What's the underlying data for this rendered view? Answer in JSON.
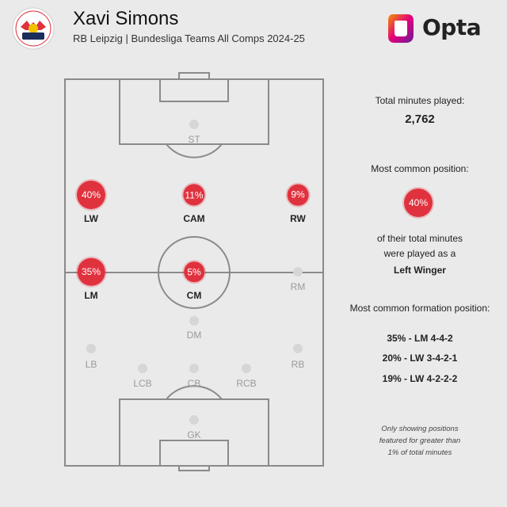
{
  "header": {
    "title": "Xavi Simons",
    "subtitle": "RB Leipzig | Bundesliga Teams All Comps 2024-25",
    "club_crest_text": "RB LEIPZIG",
    "brand": "Opta"
  },
  "colors": {
    "background": "#eaeaea",
    "accent_red": "#e0323e",
    "inactive_marker": "#d6d6d6",
    "pitch_lines": "#8a8a8a"
  },
  "positions": [
    {
      "label": "ST",
      "value": null,
      "active": false
    },
    {
      "label": "LW",
      "value": "40%",
      "active": true
    },
    {
      "label": "CAM",
      "value": "11%",
      "active": true
    },
    {
      "label": "RW",
      "value": "9%",
      "active": true
    },
    {
      "label": "LM",
      "value": "35%",
      "active": true
    },
    {
      "label": "CM",
      "value": "5%",
      "active": true
    },
    {
      "label": "RM",
      "value": null,
      "active": false
    },
    {
      "label": "DM",
      "value": null,
      "active": false
    },
    {
      "label": "LB",
      "value": null,
      "active": false
    },
    {
      "label": "RB",
      "value": null,
      "active": false
    },
    {
      "label": "LCB",
      "value": null,
      "active": false
    },
    {
      "label": "CB",
      "value": null,
      "active": false
    },
    {
      "label": "RCB",
      "value": null,
      "active": false
    },
    {
      "label": "GK",
      "value": null,
      "active": false
    }
  ],
  "sidebar": {
    "total_minutes_label": "Total minutes played:",
    "total_minutes_value": "2,762",
    "common_position_label": "Most common position:",
    "common_position_value": "40%",
    "common_position_text_1": "of their total minutes",
    "common_position_text_2": "were played as a",
    "common_position_name": "Left Winger",
    "formation_label": "Most common formation position:",
    "formations": [
      "35% - LM 4-4-2",
      "20% - LW 3-4-2-1",
      "19% - LW 4-2-2-2"
    ],
    "note_lines": [
      "Only showing positions",
      "featured for greater than",
      "1% of total minutes"
    ]
  }
}
